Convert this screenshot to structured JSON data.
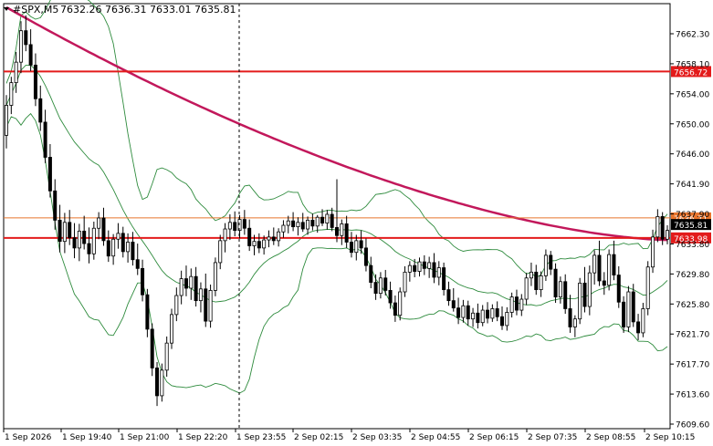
{
  "chart_data": {
    "type": "candlestick",
    "symbol_label": "#SPX,M5",
    "ohlc_header": "7632.26 7636.31 7633.01 7635.81",
    "y_axis": {
      "ylim": [
        7607.9,
        7666.0
      ],
      "ticks": [
        "7662.30",
        "7658.10",
        "7654.00",
        "7650.00",
        "7646.00",
        "7641.90",
        "7637.90",
        "7633.80",
        "7629.80",
        "7625.80",
        "7621.70",
        "7617.70",
        "7613.60",
        "7609.60"
      ]
    },
    "x_axis": {
      "ticks": [
        "1 Sep 2026",
        "1 Sep 19:40",
        "1 Sep 21:00",
        "1 Sep 22:20",
        "1 Sep 23:55",
        "2 Sep 02:15",
        "2 Sep 03:35",
        "2 Sep 04:55",
        "2 Sep 06:15",
        "2 Sep 07:35",
        "2 Sep 08:55",
        "2 Sep 10:15"
      ]
    },
    "horizontal_levels": [
      {
        "price": 7656.72,
        "label": "7656.72",
        "color": "#e31b1b",
        "width": 2
      },
      {
        "price": 7636.71,
        "label": "7636.71",
        "color": "#e8742c",
        "width": 1
      },
      {
        "price": 7633.98,
        "label": "7633.98",
        "color": "#e31b1b",
        "width": 2
      }
    ],
    "current_price": {
      "price": 7635.81,
      "label": "7635.81"
    },
    "vertical_separator_index": 90,
    "candle_count": 250,
    "ma": {
      "color": "#c2185b",
      "start": 7665.5,
      "end": 7633.7
    },
    "bands_color": "#2e8b3d",
    "candles": [
      [
        7648.0,
        7653.5,
        7646.2,
        7652.1
      ],
      [
        7652.1,
        7656.0,
        7650.9,
        7655.2
      ],
      [
        7655.2,
        7659.4,
        7653.8,
        7658.0
      ],
      [
        7658.0,
        7663.6,
        7656.5,
        7662.3
      ],
      [
        7662.3,
        7664.4,
        7659.5,
        7660.4
      ],
      [
        7660.4,
        7662.5,
        7656.8,
        7657.6
      ],
      [
        7657.6,
        7659.2,
        7652.0,
        7653.0
      ],
      [
        7653.0,
        7654.8,
        7648.6,
        7649.8
      ],
      [
        7649.8,
        7651.5,
        7644.2,
        7645.0
      ],
      [
        7645.0,
        7646.8,
        7639.5,
        7640.4
      ],
      [
        7640.4,
        7642.0,
        7635.1,
        7636.4
      ],
      [
        7636.4,
        7638.5,
        7632.0,
        7633.5
      ],
      [
        7633.5,
        7637.4,
        7631.9,
        7636.1
      ],
      [
        7636.1,
        7637.8,
        7633.0,
        7634.0
      ],
      [
        7634.0,
        7636.0,
        7631.2,
        7632.6
      ],
      [
        7632.6,
        7635.9,
        7630.8,
        7634.9
      ],
      [
        7634.9,
        7637.0,
        7632.4,
        7633.2
      ],
      [
        7633.2,
        7635.4,
        7630.5,
        7631.8
      ],
      [
        7631.8,
        7636.2,
        7631.0,
        7635.3
      ],
      [
        7635.3,
        7637.5,
        7633.8,
        7636.7
      ],
      [
        7636.7,
        7638.1,
        7632.9,
        7633.6
      ],
      [
        7633.6,
        7635.0,
        7630.7,
        7631.5
      ],
      [
        7631.5,
        7634.5,
        7630.3,
        7633.8
      ],
      [
        7633.8,
        7636.0,
        7632.5,
        7634.6
      ],
      [
        7634.6,
        7635.5,
        7631.3,
        7632.1
      ],
      [
        7632.1,
        7634.6,
        7630.6,
        7633.4
      ],
      [
        7633.4,
        7634.8,
        7630.2,
        7631.0
      ],
      [
        7631.0,
        7633.2,
        7628.9,
        7629.8
      ],
      [
        7629.8,
        7631.0,
        7625.3,
        7626.2
      ],
      [
        7626.2,
        7627.0,
        7620.4,
        7621.5
      ],
      [
        7621.5,
        7622.3,
        7615.1,
        7616.2
      ],
      [
        7616.2,
        7617.0,
        7611.0,
        7612.4
      ],
      [
        7612.4,
        7616.8,
        7611.6,
        7615.9
      ],
      [
        7615.9,
        7620.5,
        7615.0,
        7619.6
      ],
      [
        7619.6,
        7624.3,
        7618.8,
        7623.5
      ],
      [
        7623.5,
        7627.2,
        7622.6,
        7626.1
      ],
      [
        7626.1,
        7629.5,
        7624.9,
        7628.4
      ],
      [
        7628.4,
        7630.2,
        7626.0,
        7627.1
      ],
      [
        7627.1,
        7629.8,
        7625.5,
        7628.7
      ],
      [
        7628.7,
        7630.0,
        7624.6,
        7625.4
      ],
      [
        7625.4,
        7627.9,
        7623.8,
        7627.0
      ],
      [
        7627.0,
        7629.1,
        7621.8,
        7622.6
      ],
      [
        7622.6,
        7627.6,
        7621.7,
        7626.8
      ],
      [
        7626.8,
        7631.3,
        7626.0,
        7630.6
      ],
      [
        7630.6,
        7634.4,
        7629.7,
        7633.6
      ],
      [
        7633.6,
        7636.0,
        7632.0,
        7635.2
      ],
      [
        7635.2,
        7637.2,
        7633.7,
        7636.1
      ],
      [
        7636.1,
        7637.6,
        7634.2,
        7635.0
      ],
      [
        7635.0,
        7637.1,
        7633.9,
        7636.5
      ],
      [
        7636.5,
        7637.8,
        7634.4,
        7635.3
      ],
      [
        7635.3,
        7636.5,
        7632.2,
        7632.9
      ],
      [
        7632.9,
        7634.4,
        7631.6,
        7633.5
      ],
      [
        7633.5,
        7634.6,
        7631.9,
        7632.6
      ],
      [
        7632.6,
        7634.3,
        7631.7,
        7633.7
      ],
      [
        7633.7,
        7635.0,
        7632.7,
        7634.1
      ],
      [
        7634.1,
        7635.4,
        7633.0,
        7633.6
      ],
      [
        7633.6,
        7635.3,
        7632.8,
        7634.8
      ],
      [
        7634.8,
        7636.4,
        7634.0,
        7635.7
      ],
      [
        7635.7,
        7637.0,
        7634.6,
        7636.3
      ],
      [
        7636.3,
        7637.5,
        7634.9,
        7635.5
      ],
      [
        7635.5,
        7636.8,
        7634.3,
        7636.1
      ],
      [
        7636.1,
        7637.4,
        7634.8,
        7635.2
      ],
      [
        7635.2,
        7636.9,
        7634.4,
        7636.4
      ],
      [
        7636.4,
        7637.3,
        7635.0,
        7635.6
      ],
      [
        7635.6,
        7637.1,
        7634.7,
        7636.8
      ],
      [
        7636.8,
        7637.9,
        7635.6,
        7636.0
      ],
      [
        7636.0,
        7637.8,
        7635.1,
        7637.2
      ],
      [
        7637.2,
        7638.1,
        7634.9,
        7635.4
      ],
      [
        7635.4,
        7642.0,
        7633.4,
        7634.3
      ],
      [
        7634.3,
        7636.5,
        7633.0,
        7635.9
      ],
      [
        7635.9,
        7637.0,
        7632.6,
        7633.4
      ],
      [
        7633.4,
        7634.8,
        7631.3,
        7632.0
      ],
      [
        7632.0,
        7634.4,
        7630.9,
        7633.6
      ],
      [
        7633.6,
        7635.0,
        7631.8,
        7632.6
      ],
      [
        7632.6,
        7633.9,
        7629.4,
        7630.2
      ],
      [
        7630.2,
        7631.4,
        7627.1,
        7627.9
      ],
      [
        7627.9,
        7629.0,
        7625.5,
        7626.4
      ],
      [
        7626.4,
        7629.3,
        7625.7,
        7628.5
      ],
      [
        7628.5,
        7629.6,
        7626.1,
        7626.8
      ],
      [
        7626.8,
        7628.0,
        7624.3,
        7625.1
      ],
      [
        7625.1,
        7626.1,
        7622.5,
        7623.4
      ],
      [
        7623.4,
        7627.2,
        7622.7,
        7626.6
      ],
      [
        7626.6,
        7630.1,
        7625.9,
        7629.3
      ],
      [
        7629.3,
        7630.8,
        7628.0,
        7630.2
      ],
      [
        7630.2,
        7631.1,
        7628.6,
        7629.4
      ],
      [
        7629.4,
        7631.3,
        7628.7,
        7630.7
      ],
      [
        7630.7,
        7631.6,
        7628.9,
        7629.8
      ],
      [
        7629.8,
        7631.4,
        7628.5,
        7630.6
      ],
      [
        7630.6,
        7631.9,
        7627.8,
        7628.6
      ],
      [
        7628.6,
        7630.8,
        7627.5,
        7629.9
      ],
      [
        7629.9,
        7630.6,
        7626.1,
        7626.9
      ],
      [
        7626.9,
        7628.0,
        7624.7,
        7625.4
      ],
      [
        7625.4,
        7627.1,
        7623.9,
        7624.4
      ],
      [
        7624.4,
        7625.8,
        7622.2,
        7623.1
      ],
      [
        7623.1,
        7625.5,
        7622.4,
        7624.7
      ],
      [
        7624.7,
        7625.4,
        7622.0,
        7622.9
      ],
      [
        7622.9,
        7624.4,
        7621.8,
        7623.7
      ],
      [
        7623.7,
        7625.0,
        7621.6,
        7622.4
      ],
      [
        7622.4,
        7624.8,
        7621.9,
        7624.1
      ],
      [
        7624.1,
        7625.2,
        7622.3,
        7623.0
      ],
      [
        7623.0,
        7624.9,
        7622.5,
        7624.3
      ],
      [
        7624.3,
        7625.3,
        7622.6,
        7623.2
      ],
      [
        7623.2,
        7624.6,
        7621.4,
        7622.0
      ],
      [
        7622.0,
        7624.5,
        7621.3,
        7623.8
      ],
      [
        7623.8,
        7626.5,
        7623.1,
        7625.9
      ],
      [
        7625.9,
        7626.9,
        7623.4,
        7624.1
      ],
      [
        7624.1,
        7626.3,
        7623.3,
        7625.6
      ],
      [
        7625.6,
        7629.2,
        7624.8,
        7628.5
      ],
      [
        7628.5,
        7630.6,
        7627.4,
        7629.3
      ],
      [
        7629.3,
        7630.3,
        7626.2,
        7626.9
      ],
      [
        7626.9,
        7629.4,
        7625.9,
        7628.8
      ],
      [
        7628.8,
        7632.4,
        7628.1,
        7631.6
      ],
      [
        7631.6,
        7632.2,
        7628.9,
        7629.7
      ],
      [
        7629.7,
        7630.5,
        7625.1,
        7625.9
      ],
      [
        7625.9,
        7628.7,
        7625.0,
        7628.0
      ],
      [
        7628.0,
        7629.0,
        7623.6,
        7624.3
      ],
      [
        7624.3,
        7626.2,
        7621.0,
        7621.8
      ],
      [
        7621.8,
        7623.4,
        7620.4,
        7622.9
      ],
      [
        7622.9,
        7628.5,
        7622.2,
        7627.8
      ],
      [
        7627.8,
        7630.0,
        7623.8,
        7624.6
      ],
      [
        7624.6,
        7630.2,
        7623.4,
        7629.2
      ],
      [
        7629.2,
        7632.3,
        7627.6,
        7631.6
      ],
      [
        7631.6,
        7633.6,
        7627.4,
        7628.1
      ],
      [
        7628.1,
        7629.3,
        7626.2,
        7627.5
      ],
      [
        7627.5,
        7632.4,
        7626.8,
        7631.7
      ],
      [
        7631.7,
        7633.6,
        7628.2,
        7628.9
      ],
      [
        7628.9,
        7630.1,
        7624.4,
        7625.2
      ],
      [
        7625.2,
        7626.0,
        7621.0,
        7621.8
      ],
      [
        7621.8,
        7627.4,
        7621.1,
        7626.6
      ],
      [
        7626.6,
        7627.7,
        7621.8,
        7622.5
      ],
      [
        7622.5,
        7623.6,
        7620.0,
        7621.0
      ],
      [
        7621.0,
        7625.1,
        7620.4,
        7624.3
      ],
      [
        7624.3,
        7630.8,
        7623.4,
        7630.0
      ],
      [
        7630.0,
        7635.1,
        7629.2,
        7634.1
      ],
      [
        7634.1,
        7637.9,
        7633.4,
        7636.9
      ],
      [
        7636.9,
        7637.5,
        7633.0,
        7633.8
      ],
      [
        7633.8,
        7635.7,
        7633.1,
        7635.0
      ]
    ]
  }
}
